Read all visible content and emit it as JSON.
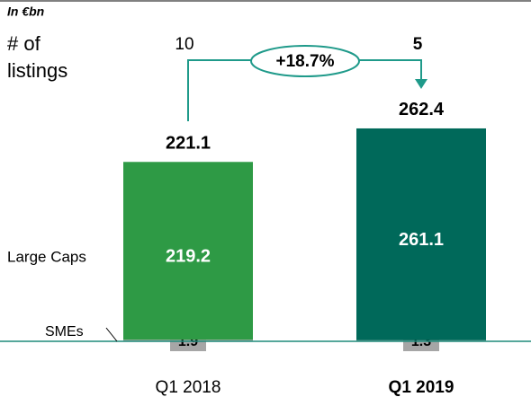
{
  "chart_data": {
    "type": "stacked_bar",
    "unit_label": "In €bn",
    "listings_label": "# of listings",
    "categories": [
      "Q1 2018",
      "Q1 2019"
    ],
    "highlight_category": 1,
    "series": [
      {
        "name": "SMEs",
        "color": "#a6a6a6",
        "values": [
          1.9,
          1.3
        ]
      },
      {
        "name": "Large Caps",
        "colors": [
          "#2e9a45",
          "#00695a"
        ],
        "values": [
          219.2,
          261.1
        ]
      }
    ],
    "totals": [
      221.1,
      262.4
    ],
    "listings": [
      10,
      5
    ],
    "growth": "+18.7%",
    "connector_color": "#1f9a8a",
    "ylim": [
      0,
      300
    ]
  }
}
